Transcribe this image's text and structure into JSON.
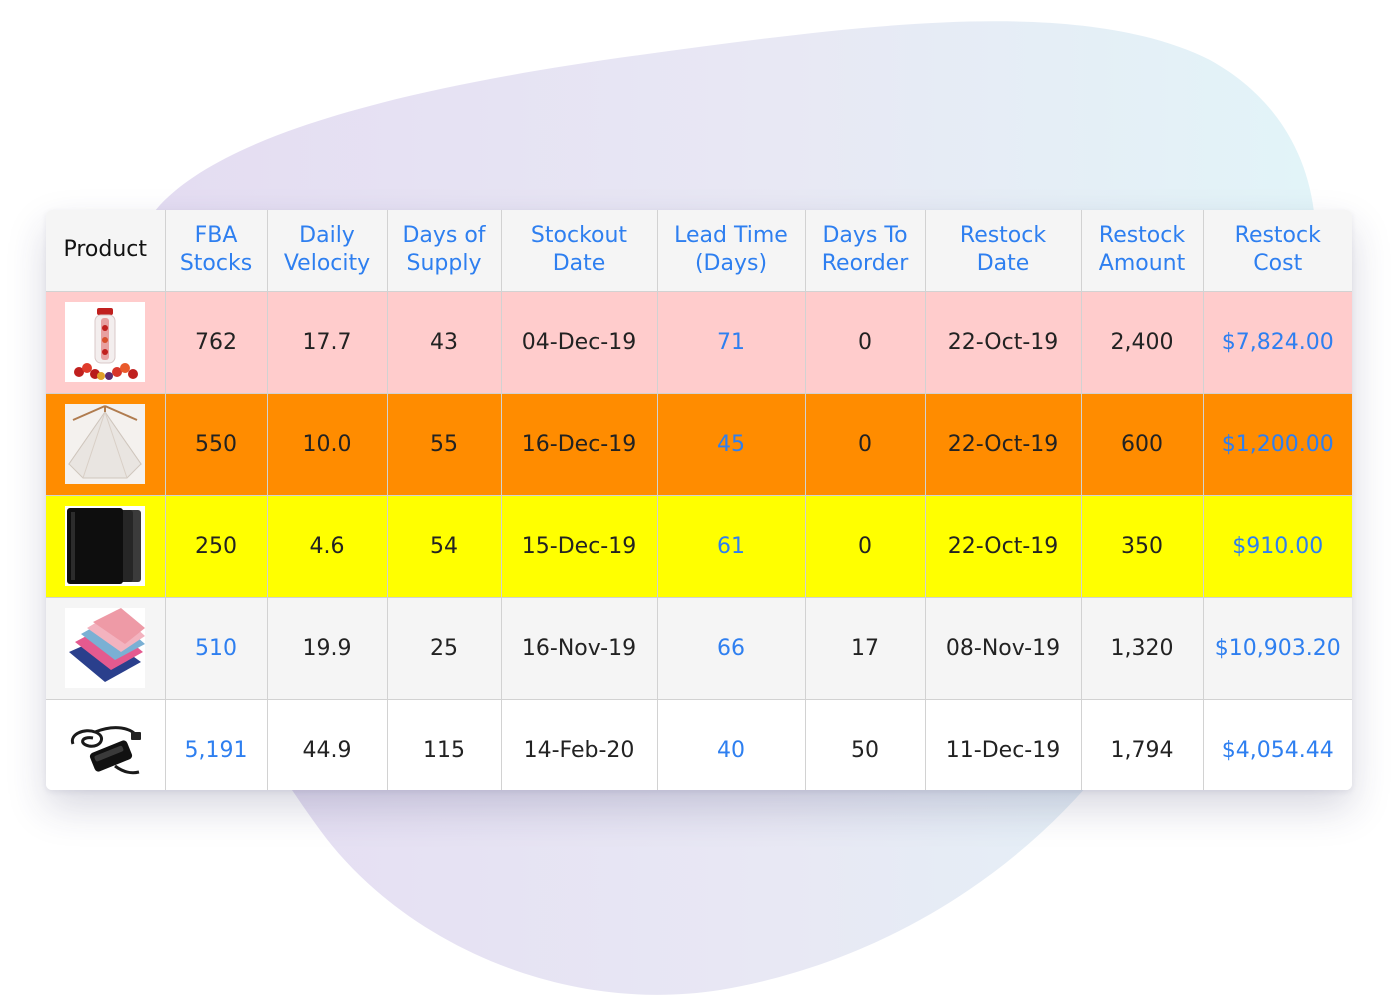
{
  "header": {
    "product": "Product",
    "fba_stocks": [
      "FBA",
      "Stocks"
    ],
    "daily_velocity": [
      "Daily",
      "Velocity"
    ],
    "days_of_supply": [
      "Days of",
      "Supply"
    ],
    "stockout_date": [
      "Stockout",
      "Date"
    ],
    "lead_time": [
      "Lead Time",
      "(Days)"
    ],
    "days_to_reorder": [
      "Days To",
      "Reorder"
    ],
    "restock_date": [
      "Restock",
      "Date"
    ],
    "restock_amount": [
      "Restock",
      "Amount"
    ],
    "restock_cost": [
      "Restock",
      "Cost"
    ]
  },
  "rows": [
    {
      "icon": "water-bottle-icon",
      "row_color": "#ffcccc",
      "fba_stocks": "762",
      "daily_velocity": "17.7",
      "days_of_supply": "43",
      "stockout_date": "04-Dec-19",
      "lead_time": "71",
      "days_to_reorder": "0",
      "restock_date": "22-Oct-19",
      "restock_amount": "2,400",
      "restock_cost": "$7,824.00"
    },
    {
      "icon": "white-pyramid-product-icon",
      "row_color": "#ff8c00",
      "fba_stocks": "550",
      "daily_velocity": "10.0",
      "days_of_supply": "55",
      "stockout_date": "16-Dec-19",
      "lead_time": "45",
      "days_to_reorder": "0",
      "restock_date": "22-Oct-19",
      "restock_amount": "600",
      "restock_cost": "$1,200.00"
    },
    {
      "icon": "black-case-icon",
      "row_color": "#ffff00",
      "fba_stocks": "250",
      "daily_velocity": "4.6",
      "days_of_supply": "54",
      "stockout_date": "15-Dec-19",
      "lead_time": "61",
      "days_to_reorder": "0",
      "restock_date": "22-Oct-19",
      "restock_amount": "350",
      "restock_cost": "$910.00"
    },
    {
      "icon": "colored-cloths-icon",
      "row_color": "#f5f5f5",
      "fba_stocks": "510",
      "daily_velocity": "19.9",
      "days_of_supply": "25",
      "stockout_date": "16-Nov-19",
      "lead_time": "66",
      "days_to_reorder": "17",
      "restock_date": "08-Nov-19",
      "restock_amount": "1,320",
      "restock_cost": "$10,903.20"
    },
    {
      "icon": "power-adapter-icon",
      "row_color": "#ffffff",
      "fba_stocks": "5,191",
      "daily_velocity": "44.9",
      "days_of_supply": "115",
      "stockout_date": "14-Feb-20",
      "lead_time": "40",
      "days_to_reorder": "50",
      "restock_date": "11-Dec-19",
      "restock_amount": "1,794",
      "restock_cost": "$4,054.44"
    }
  ],
  "colors": {
    "link": "#2e7ff0",
    "header_bg": "#f5f5f5",
    "grid": "#d2d2d2"
  }
}
